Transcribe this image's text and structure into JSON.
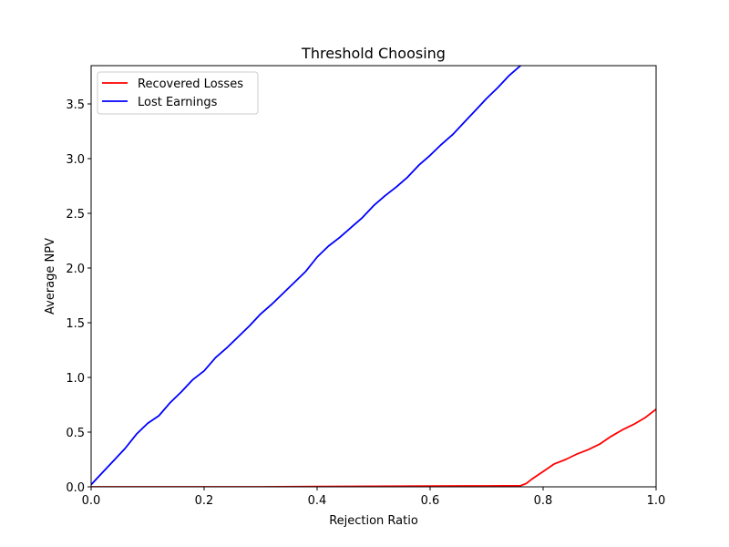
{
  "chart_data": {
    "type": "line",
    "title": "Threshold Choosing",
    "xlabel": "Rejection Ratio",
    "ylabel": "Average NPV",
    "xlim": [
      0.0,
      1.0
    ],
    "ylim": [
      0.0,
      3.85
    ],
    "xticks": [
      {
        "value": 0.0,
        "label": "0.0"
      },
      {
        "value": 0.2,
        "label": "0.2"
      },
      {
        "value": 0.4,
        "label": "0.4"
      },
      {
        "value": 0.6,
        "label": "0.6"
      },
      {
        "value": 0.8,
        "label": "0.8"
      },
      {
        "value": 1.0,
        "label": "1.0"
      }
    ],
    "yticks": [
      {
        "value": 0.0,
        "label": "0.0"
      },
      {
        "value": 0.5,
        "label": "0.5"
      },
      {
        "value": 1.0,
        "label": "1.0"
      },
      {
        "value": 1.5,
        "label": "1.5"
      },
      {
        "value": 2.0,
        "label": "2.0"
      },
      {
        "value": 2.5,
        "label": "2.5"
      },
      {
        "value": 3.0,
        "label": "3.0"
      },
      {
        "value": 3.5,
        "label": "3.5"
      }
    ],
    "grid": false,
    "legend_position": "top-left",
    "series": [
      {
        "name": "Recovered Losses",
        "color": "#ff0000",
        "x": [
          0.0,
          0.1,
          0.2,
          0.3,
          0.4,
          0.5,
          0.6,
          0.7,
          0.76,
          0.77,
          0.78,
          0.8,
          0.82,
          0.84,
          0.86,
          0.88,
          0.9,
          0.92,
          0.94,
          0.96,
          0.98,
          1.0
        ],
        "y": [
          0.0,
          0.0,
          0.0,
          0.0,
          0.003,
          0.005,
          0.007,
          0.008,
          0.01,
          0.03,
          0.07,
          0.14,
          0.21,
          0.25,
          0.3,
          0.34,
          0.39,
          0.46,
          0.52,
          0.57,
          0.63,
          0.71
        ]
      },
      {
        "name": "Lost Earnings",
        "color": "#0000ff",
        "x": [
          0.0,
          0.02,
          0.04,
          0.06,
          0.08,
          0.1,
          0.12,
          0.14,
          0.16,
          0.18,
          0.2,
          0.22,
          0.24,
          0.26,
          0.28,
          0.3,
          0.32,
          0.34,
          0.36,
          0.38,
          0.4,
          0.42,
          0.44,
          0.46,
          0.48,
          0.5,
          0.52,
          0.54,
          0.56,
          0.58,
          0.6,
          0.62,
          0.64,
          0.66,
          0.68,
          0.7,
          0.72,
          0.74,
          0.76,
          0.77
        ],
        "y": [
          0.02,
          0.13,
          0.24,
          0.35,
          0.48,
          0.58,
          0.65,
          0.77,
          0.87,
          0.98,
          1.06,
          1.18,
          1.27,
          1.37,
          1.47,
          1.58,
          1.67,
          1.77,
          1.87,
          1.97,
          2.1,
          2.2,
          2.28,
          2.37,
          2.46,
          2.57,
          2.66,
          2.74,
          2.83,
          2.94,
          3.03,
          3.13,
          3.22,
          3.33,
          3.44,
          3.55,
          3.65,
          3.76,
          3.85,
          3.87
        ]
      }
    ]
  }
}
